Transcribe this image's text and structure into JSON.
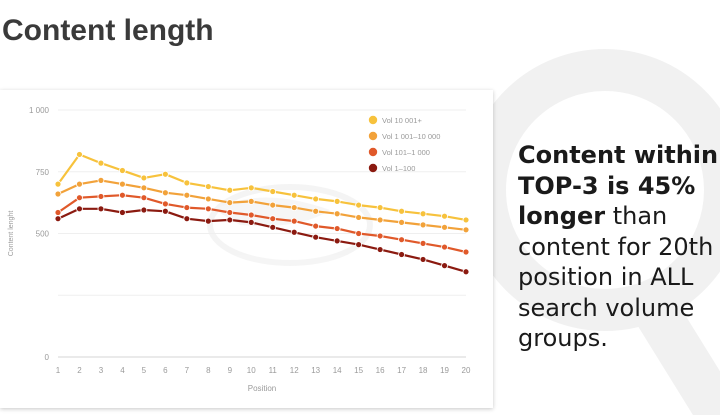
{
  "slide": {
    "title": "Content length",
    "callout_lines": [
      {
        "parts": [
          {
            "text": "Content within",
            "bold": true
          }
        ]
      },
      {
        "parts": [
          {
            "text": "TOP-3 is 45%",
            "bold": true
          }
        ]
      },
      {
        "parts": [
          {
            "text": "longer",
            "bold": true
          },
          {
            "text": " than",
            "bold": false
          }
        ]
      },
      {
        "parts": [
          {
            "text": "content for 20th",
            "bold": false
          }
        ]
      },
      {
        "parts": [
          {
            "text": "position in ALL",
            "bold": false
          }
        ]
      },
      {
        "parts": [
          {
            "text": "search volume",
            "bold": false
          }
        ]
      },
      {
        "parts": [
          {
            "text": "groups.",
            "bold": false
          }
        ]
      }
    ]
  },
  "chart_data": {
    "type": "line",
    "title": "",
    "xlabel": "Position",
    "ylabel": "Content lenght",
    "x": [
      1,
      2,
      3,
      4,
      5,
      6,
      7,
      8,
      9,
      10,
      11,
      12,
      13,
      14,
      15,
      16,
      17,
      18,
      19,
      20
    ],
    "ylim": [
      0,
      1000
    ],
    "yticks": [
      0,
      250,
      500,
      750,
      1000
    ],
    "ytick_labels": [
      "0",
      "500",
      "750",
      "1 000"
    ],
    "ytick_label_values": [
      0,
      500,
      750,
      1000
    ],
    "grid": true,
    "legend_position": "top-right",
    "series": [
      {
        "name": "Vol 10 001+",
        "color": "#F7C23C",
        "values": [
          700,
          820,
          785,
          755,
          725,
          740,
          705,
          690,
          675,
          685,
          670,
          655,
          640,
          630,
          615,
          605,
          590,
          580,
          570,
          555
        ]
      },
      {
        "name": "Vol 1 001–10 000",
        "color": "#F2A23A",
        "values": [
          660,
          700,
          715,
          700,
          685,
          665,
          655,
          640,
          625,
          630,
          615,
          605,
          590,
          580,
          565,
          555,
          545,
          535,
          525,
          515
        ]
      },
      {
        "name": "Vol 101–1 000",
        "color": "#E0592A",
        "values": [
          585,
          645,
          650,
          655,
          645,
          620,
          605,
          600,
          585,
          575,
          560,
          550,
          530,
          520,
          500,
          490,
          475,
          460,
          445,
          425
        ]
      },
      {
        "name": "Vol 1–100",
        "color": "#8B1A10",
        "values": [
          560,
          600,
          600,
          585,
          595,
          590,
          560,
          550,
          555,
          545,
          525,
          505,
          485,
          470,
          455,
          435,
          415,
          395,
          370,
          345
        ]
      }
    ]
  }
}
